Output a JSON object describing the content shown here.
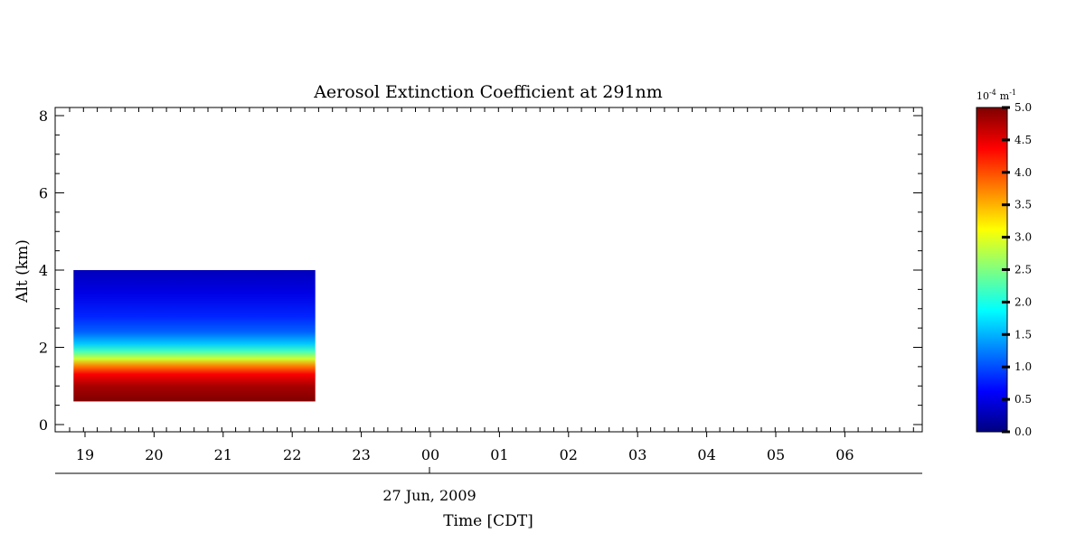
{
  "chart_data": {
    "type": "heatmap",
    "title": "Aerosol Extinction Coefficient at 291nm",
    "ylabel": "Alt (km)",
    "xlabel": "Time [CDT]",
    "date_label": "27 Jun, 2009",
    "ylim": [
      0,
      8
    ],
    "y_ticks": [
      "0",
      "2",
      "4",
      "6",
      "8"
    ],
    "x_ticks": [
      "19",
      "20",
      "21",
      "22",
      "23",
      "00",
      "01",
      "02",
      "03",
      "04",
      "05",
      "06"
    ],
    "data_coverage": {
      "time_start": "18:50",
      "time_end": "22:20",
      "alt_min_km": 0.6,
      "alt_max_km": 4.0
    },
    "gradient_profile": {
      "altitude_km": [
        0.6,
        1.0,
        1.3,
        1.5,
        1.7,
        1.9,
        2.1,
        2.4,
        2.8,
        3.4,
        4.0
      ],
      "extinction": [
        5.0,
        4.8,
        4.4,
        3.8,
        2.9,
        2.2,
        1.6,
        1.1,
        0.8,
        0.5,
        0.3
      ]
    },
    "colorbar": {
      "unit_prefix": "10",
      "unit_exponent": "-4",
      "unit_label": "m",
      "unit_label_exponent": "-1",
      "range": [
        0.0,
        5.0
      ],
      "ticks": [
        "0.0",
        "0.5",
        "1.0",
        "1.5",
        "2.0",
        "2.5",
        "3.0",
        "3.5",
        "4.0",
        "4.5",
        "5.0"
      ],
      "colormap": [
        "#00007f",
        "#0000ff",
        "#0080ff",
        "#00ffff",
        "#80ff80",
        "#ffff00",
        "#ff8000",
        "#ff0000",
        "#7f0000"
      ]
    }
  }
}
